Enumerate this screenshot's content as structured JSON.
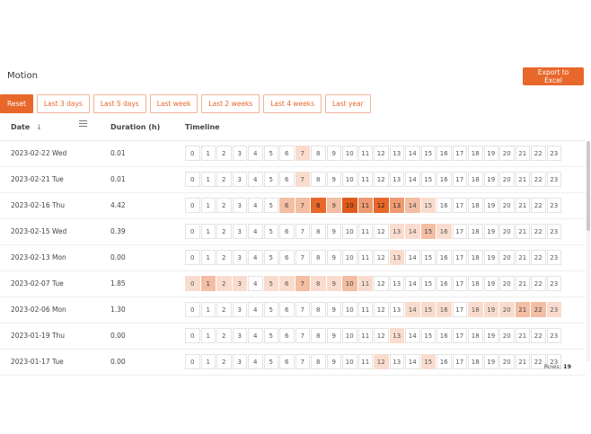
{
  "page": {
    "title": "Motion",
    "export_label": "Export to Excel"
  },
  "filters": [
    "Reset",
    "Last 3 days",
    "Last 5 days",
    "Last week",
    "Last 2 weeks",
    "Last 4 weeks",
    "Last year"
  ],
  "table": {
    "columns": {
      "date": "Date",
      "date_sort_icon": "↓",
      "duration": "Duration (h)",
      "timeline": "Timeline"
    },
    "hours": [
      "0",
      "1",
      "2",
      "3",
      "4",
      "5",
      "6",
      "7",
      "8",
      "9",
      "10",
      "11",
      "12",
      "13",
      "14",
      "15",
      "16",
      "17",
      "18",
      "19",
      "20",
      "21",
      "22",
      "23"
    ],
    "rows": [
      {
        "date": "2023-02-22 Wed",
        "duration": "0.01",
        "levels": [
          0,
          0,
          0,
          0,
          0,
          0,
          0,
          1,
          0,
          0,
          0,
          0,
          0,
          0,
          0,
          0,
          0,
          0,
          0,
          0,
          0,
          0,
          0,
          0
        ]
      },
      {
        "date": "2023-02-21 Tue",
        "duration": "0.01",
        "levels": [
          0,
          0,
          0,
          0,
          0,
          0,
          0,
          1,
          0,
          0,
          0,
          0,
          0,
          0,
          0,
          0,
          0,
          0,
          0,
          0,
          0,
          0,
          0,
          0
        ]
      },
      {
        "date": "2023-02-16 Thu",
        "duration": "4.42",
        "levels": [
          0,
          0,
          0,
          0,
          0,
          0,
          2,
          2,
          4,
          2,
          5,
          3,
          4,
          3,
          2,
          1,
          0,
          0,
          0,
          0,
          0,
          0,
          0,
          0
        ]
      },
      {
        "date": "2023-02-15 Wed",
        "duration": "0.39",
        "levels": [
          0,
          0,
          0,
          0,
          0,
          0,
          0,
          0,
          0,
          0,
          0,
          0,
          0,
          1,
          1,
          2,
          1,
          0,
          0,
          0,
          0,
          0,
          0,
          0
        ]
      },
      {
        "date": "2023-02-13 Mon",
        "duration": "0.00",
        "levels": [
          0,
          0,
          0,
          0,
          0,
          0,
          0,
          0,
          0,
          0,
          0,
          0,
          0,
          1,
          0,
          0,
          0,
          0,
          0,
          0,
          0,
          0,
          0,
          0
        ]
      },
      {
        "date": "2023-02-07 Tue",
        "duration": "1.85",
        "levels": [
          1,
          2,
          1,
          1,
          0,
          1,
          1,
          2,
          1,
          1,
          2,
          1,
          0,
          0,
          0,
          0,
          0,
          0,
          0,
          0,
          0,
          0,
          0,
          0
        ]
      },
      {
        "date": "2023-02-06 Mon",
        "duration": "1.30",
        "levels": [
          0,
          0,
          0,
          0,
          0,
          0,
          0,
          0,
          0,
          0,
          0,
          0,
          0,
          0,
          1,
          1,
          1,
          0,
          1,
          1,
          1,
          2,
          2,
          1
        ]
      },
      {
        "date": "2023-01-19 Thu",
        "duration": "0.00",
        "levels": [
          0,
          0,
          0,
          0,
          0,
          0,
          0,
          0,
          0,
          0,
          0,
          0,
          0,
          1,
          0,
          0,
          0,
          0,
          0,
          0,
          0,
          0,
          0,
          0
        ]
      },
      {
        "date": "2023-01-17 Tue",
        "duration": "0.00",
        "levels": [
          0,
          0,
          0,
          0,
          0,
          0,
          0,
          0,
          0,
          0,
          0,
          0,
          1,
          0,
          0,
          1,
          0,
          0,
          0,
          0,
          0,
          0,
          0,
          0
        ]
      }
    ]
  },
  "footer": {
    "rows_label": "Rows:",
    "rows_count": "19"
  },
  "colors": {
    "accent": "#e8672b",
    "level_0": "#ffffff",
    "level_1": "#f9dccd",
    "level_2": "#f3bea3",
    "level_3": "#ee9a72",
    "level_4": "#e8672b",
    "level_5": "#df5a1c"
  }
}
